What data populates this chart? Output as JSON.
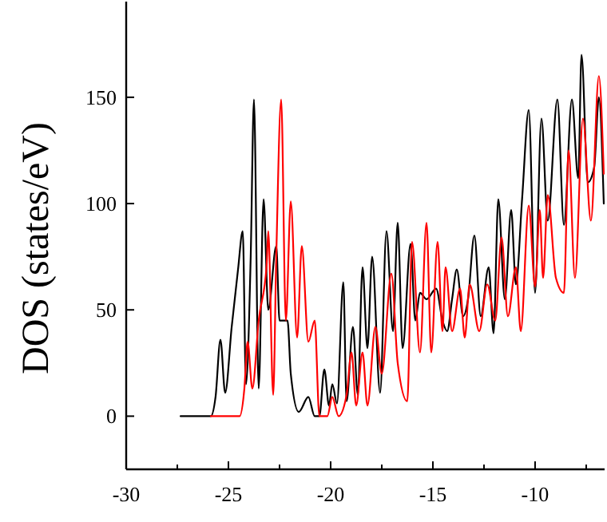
{
  "chart_data": {
    "type": "line",
    "ylabel": "DOS (states/eV)",
    "xlim": [
      -30,
      -6.6
    ],
    "ylim": [
      -25,
      195
    ],
    "xticks": [
      -30,
      {
        "value": -27.5,
        "label": null
      },
      -25,
      {
        "value": -22.5,
        "label": null
      },
      -20,
      {
        "value": -17.5,
        "label": null
      },
      -15,
      {
        "value": -12.5,
        "label": null
      },
      -10,
      {
        "value": -7.5,
        "label": null
      }
    ],
    "yticks": [
      0,
      50,
      100,
      150
    ],
    "marker": "none",
    "line_style": "solid",
    "series": [
      {
        "color": "#000000",
        "x": [
          -27.34,
          -25.86,
          -25.63,
          -25.39,
          -25.16,
          -24.84,
          -24.53,
          -24.3,
          -24.14,
          -23.91,
          -23.75,
          -23.52,
          -23.28,
          -23.05,
          -22.66,
          -22.5,
          -22.11,
          -21.95,
          -21.56,
          -21.09,
          -20.78,
          -20.55,
          -20.31,
          -20.08,
          -19.92,
          -19.69,
          -19.38,
          -19.22,
          -18.91,
          -18.67,
          -18.44,
          -18.2,
          -17.97,
          -17.58,
          -17.27,
          -16.95,
          -16.72,
          -16.48,
          -16.09,
          -15.86,
          -15.63,
          -15.31,
          -14.84,
          -14.53,
          -14.3,
          -14.06,
          -13.83,
          -13.52,
          -13.28,
          -12.97,
          -12.66,
          -12.27,
          -12.03,
          -11.8,
          -11.48,
          -11.17,
          -10.94,
          -10.63,
          -10.31,
          -10,
          -9.69,
          -9.38,
          -8.91,
          -8.59,
          -8.2,
          -7.89,
          -7.73,
          -7.42,
          -7.11,
          -6.88,
          -6.64
        ],
        "values": [
          0,
          0,
          9,
          36,
          11,
          42,
          69,
          87,
          15,
          75,
          149,
          13,
          102,
          50,
          80,
          45,
          45,
          20,
          2,
          9,
          0,
          0,
          22,
          5,
          15,
          6,
          63,
          7,
          42,
          10,
          70,
          32,
          75,
          11,
          87,
          40,
          91,
          32,
          81,
          45,
          58,
          55,
          60,
          45,
          40,
          55,
          69,
          47,
          55,
          85,
          47,
          70,
          39,
          102,
          55,
          97,
          62,
          103,
          144,
          58,
          140,
          92,
          149,
          90,
          149,
          112,
          170,
          110,
          117,
          150,
          100
        ]
      },
      {
        "color": "#ff0000",
        "x": [
          -25.86,
          -24.61,
          -24.45,
          -24.22,
          -24.06,
          -23.83,
          -23.52,
          -23.13,
          -23.05,
          -22.81,
          -22.66,
          -22.42,
          -22.19,
          -21.95,
          -21.64,
          -21.41,
          -21.09,
          -20.78,
          -20.55,
          -20.16,
          -19.92,
          -19.61,
          -19.22,
          -18.98,
          -18.75,
          -18.44,
          -18.2,
          -17.81,
          -17.5,
          -17.03,
          -16.72,
          -16.25,
          -16.02,
          -15.63,
          -15.31,
          -15.08,
          -14.77,
          -14.53,
          -14.38,
          -14.06,
          -13.67,
          -13.44,
          -13.2,
          -12.73,
          -12.34,
          -11.95,
          -11.64,
          -11.33,
          -10.94,
          -10.7,
          -10.31,
          -10,
          -9.77,
          -9.61,
          -9.38,
          -8.98,
          -8.59,
          -8.36,
          -8.05,
          -7.66,
          -7.27,
          -6.88,
          -6.64
        ],
        "values": [
          0,
          0,
          0,
          13,
          35,
          13,
          45,
          71,
          87,
          10,
          75,
          149,
          45,
          101,
          37,
          80,
          35,
          45,
          0,
          0,
          9,
          0,
          10,
          30,
          5,
          30,
          5,
          42,
          20,
          67,
          25,
          7,
          82,
          30,
          91,
          30,
          82,
          40,
          70,
          40,
          60,
          37,
          62,
          40,
          62,
          45,
          84,
          47,
          70,
          40,
          99,
          61,
          97,
          65,
          104,
          65,
          58,
          125,
          65,
          140,
          92,
          160,
          114
        ]
      }
    ]
  }
}
